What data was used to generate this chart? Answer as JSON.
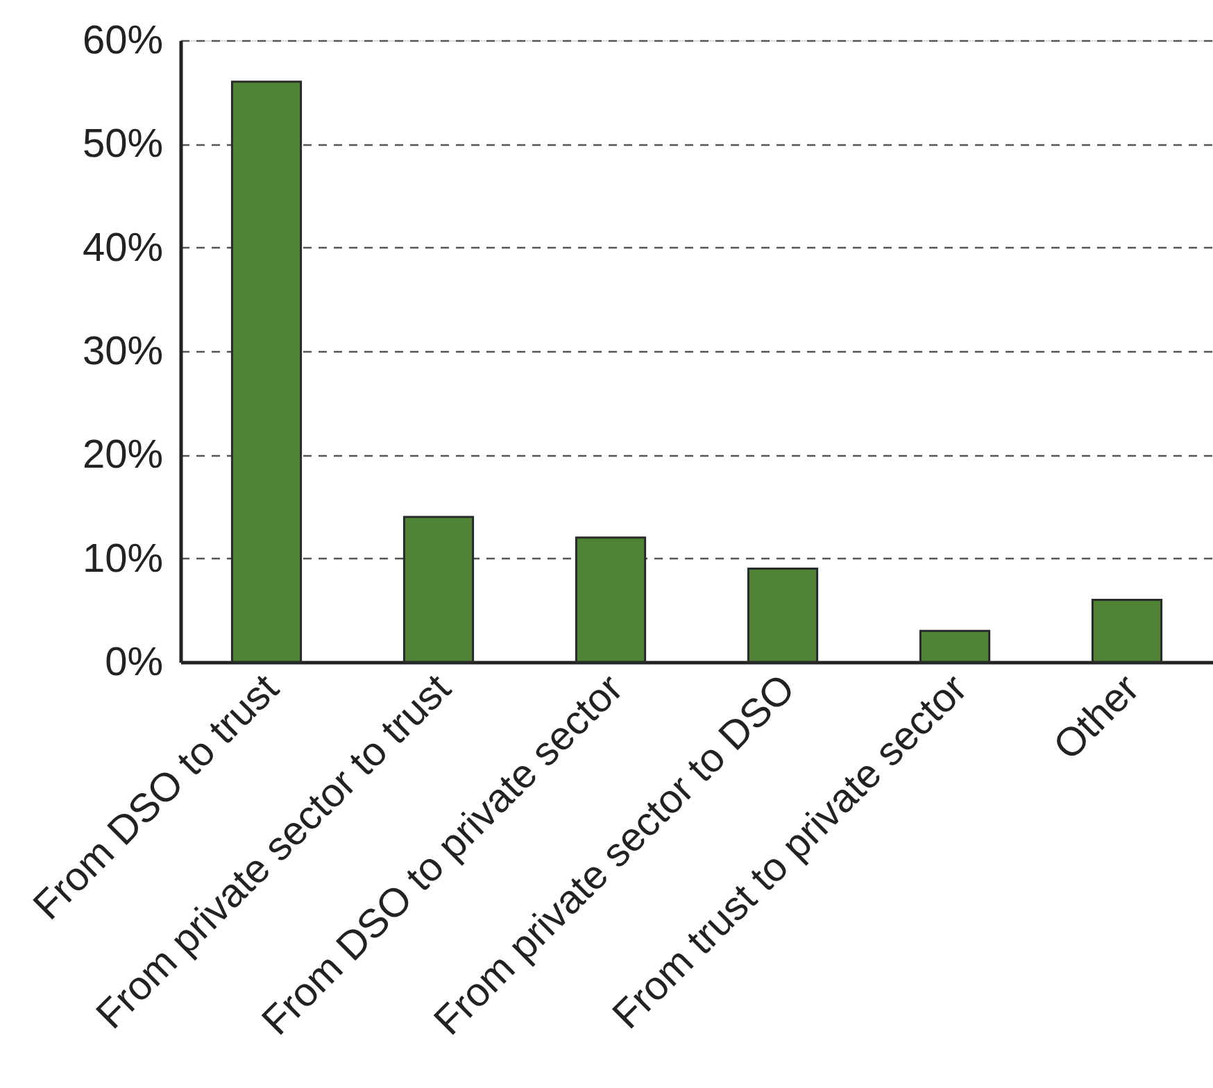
{
  "chart_data": {
    "type": "bar",
    "categories": [
      "From DSO to trust",
      "From private sector to trust",
      "From DSO to private sector",
      "From private sector to DSO",
      "From trust to private sector",
      "Other"
    ],
    "values": [
      56,
      14,
      12,
      9,
      3,
      6
    ],
    "color": "#4f8436",
    "ylim": [
      0,
      60
    ],
    "yticks": [
      {
        "value": 0,
        "label": "0%"
      },
      {
        "value": 10,
        "label": "10%"
      },
      {
        "value": 20,
        "label": "20%"
      },
      {
        "value": 30,
        "label": "30%"
      },
      {
        "value": 40,
        "label": "40%"
      },
      {
        "value": 50,
        "label": "50%"
      },
      {
        "value": 60,
        "label": "60%"
      }
    ],
    "grid": "y"
  }
}
